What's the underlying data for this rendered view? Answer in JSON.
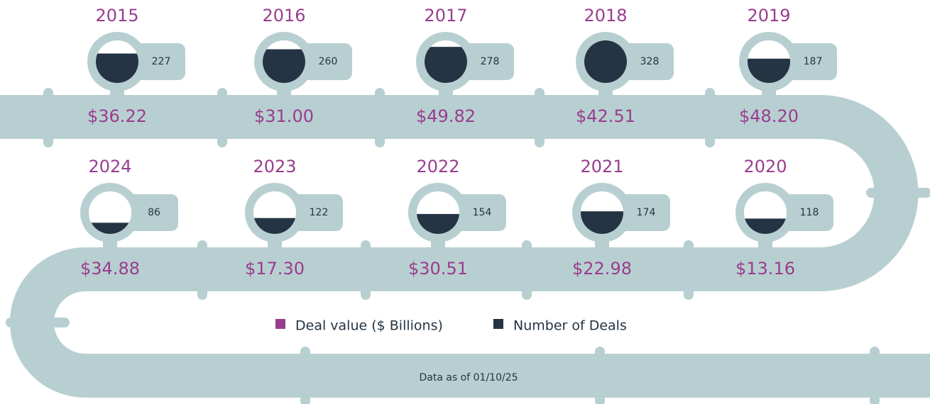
{
  "chart_data": {
    "type": "timeline",
    "categories": [
      "2015",
      "2016",
      "2017",
      "2018",
      "2019",
      "2020",
      "2021",
      "2022",
      "2023",
      "2024"
    ],
    "series": [
      {
        "name": "Deal value ($ Billions)",
        "color": "#993d8e",
        "values": [
          36.22,
          31.0,
          49.82,
          42.51,
          48.2,
          13.16,
          22.98,
          30.51,
          17.3,
          34.88
        ],
        "value_labels": [
          "$36.22",
          "$31.00",
          "$49.82",
          "$42.51",
          "$48.20",
          "$13.16",
          "$22.98",
          "$30.51",
          "$17.30",
          "$34.88"
        ]
      },
      {
        "name": "Number of Deals",
        "color": "#243444",
        "values": [
          227,
          260,
          278,
          328,
          187,
          118,
          174,
          154,
          122,
          86
        ]
      }
    ],
    "note": "Data as of 01/10/25"
  }
}
